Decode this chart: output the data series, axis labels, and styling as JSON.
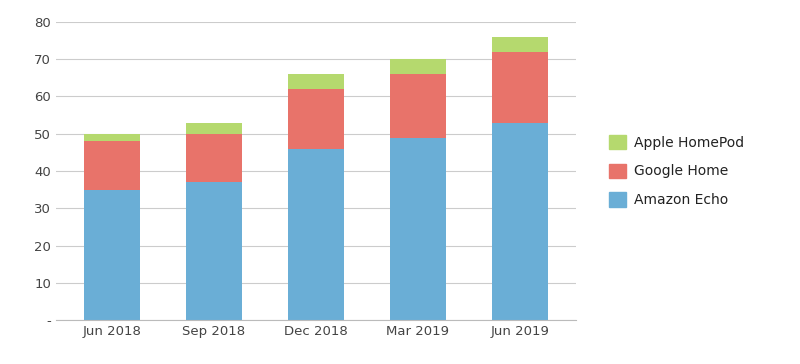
{
  "categories": [
    "Jun 2018",
    "Sep 2018",
    "Dec 2018",
    "Mar 2019",
    "Jun 2019"
  ],
  "amazon_echo": [
    35,
    37,
    46,
    49,
    53
  ],
  "google_home": [
    13,
    13,
    16,
    17,
    19
  ],
  "apple_homepod": [
    2,
    3,
    4,
    4,
    4
  ],
  "amazon_color": "#6aaed6",
  "google_color": "#e8736a",
  "apple_color": "#b5d96e",
  "ylim": [
    0,
    80
  ],
  "yticks": [
    0,
    10,
    20,
    30,
    40,
    50,
    60,
    70,
    80
  ],
  "ylabel_zero": "-",
  "bar_width": 0.55,
  "legend_labels": [
    "Apple HomePod",
    "Google Home",
    "Amazon Echo"
  ],
  "background_color": "#ffffff",
  "grid_color": "#cccccc"
}
